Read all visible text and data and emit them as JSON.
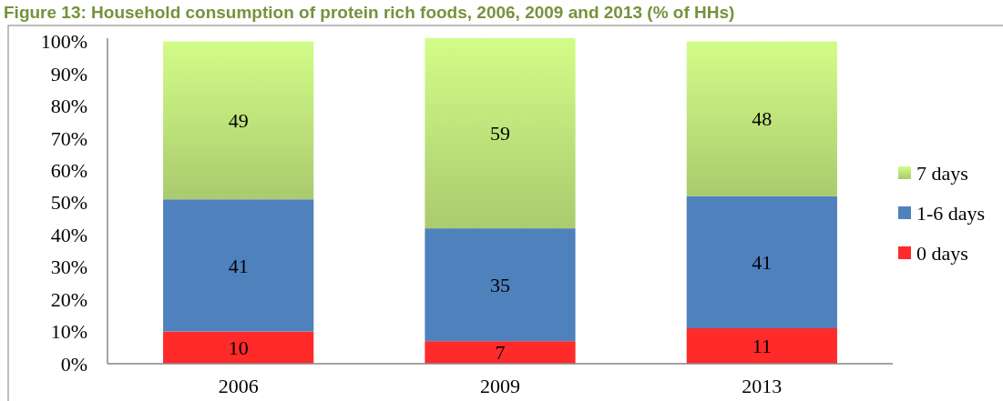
{
  "chart_data": {
    "type": "bar",
    "title": "Figure 13: Household consumption of protein rich foods, 2006, 2009 and 2013 (% of HHs)",
    "categories": [
      "2006",
      "2009",
      "2013"
    ],
    "series": [
      {
        "name": "0 days",
        "color": "#ff2a2a",
        "values": [
          10,
          7,
          11
        ]
      },
      {
        "name": "1-6 days",
        "color": "#4f81bd",
        "values": [
          41,
          35,
          41
        ]
      },
      {
        "name": "7 days",
        "color": "#bde27a",
        "values": [
          49,
          59,
          48
        ]
      }
    ],
    "stacked": true,
    "data_labels": true,
    "legend": "right",
    "grid": false,
    "ylim": [
      0,
      101
    ],
    "yticks": [
      {
        "value": 0,
        "label": "0%"
      },
      {
        "value": 10,
        "label": "10%"
      },
      {
        "value": 20,
        "label": "20%"
      },
      {
        "value": 30,
        "label": "30%"
      },
      {
        "value": 40,
        "label": "40%"
      },
      {
        "value": 50,
        "label": "50%"
      },
      {
        "value": 60,
        "label": "60%"
      },
      {
        "value": 70,
        "label": "70%"
      },
      {
        "value": 80,
        "label": "80%"
      },
      {
        "value": 90,
        "label": "90%"
      },
      {
        "value": 100,
        "label": "100%"
      }
    ]
  }
}
